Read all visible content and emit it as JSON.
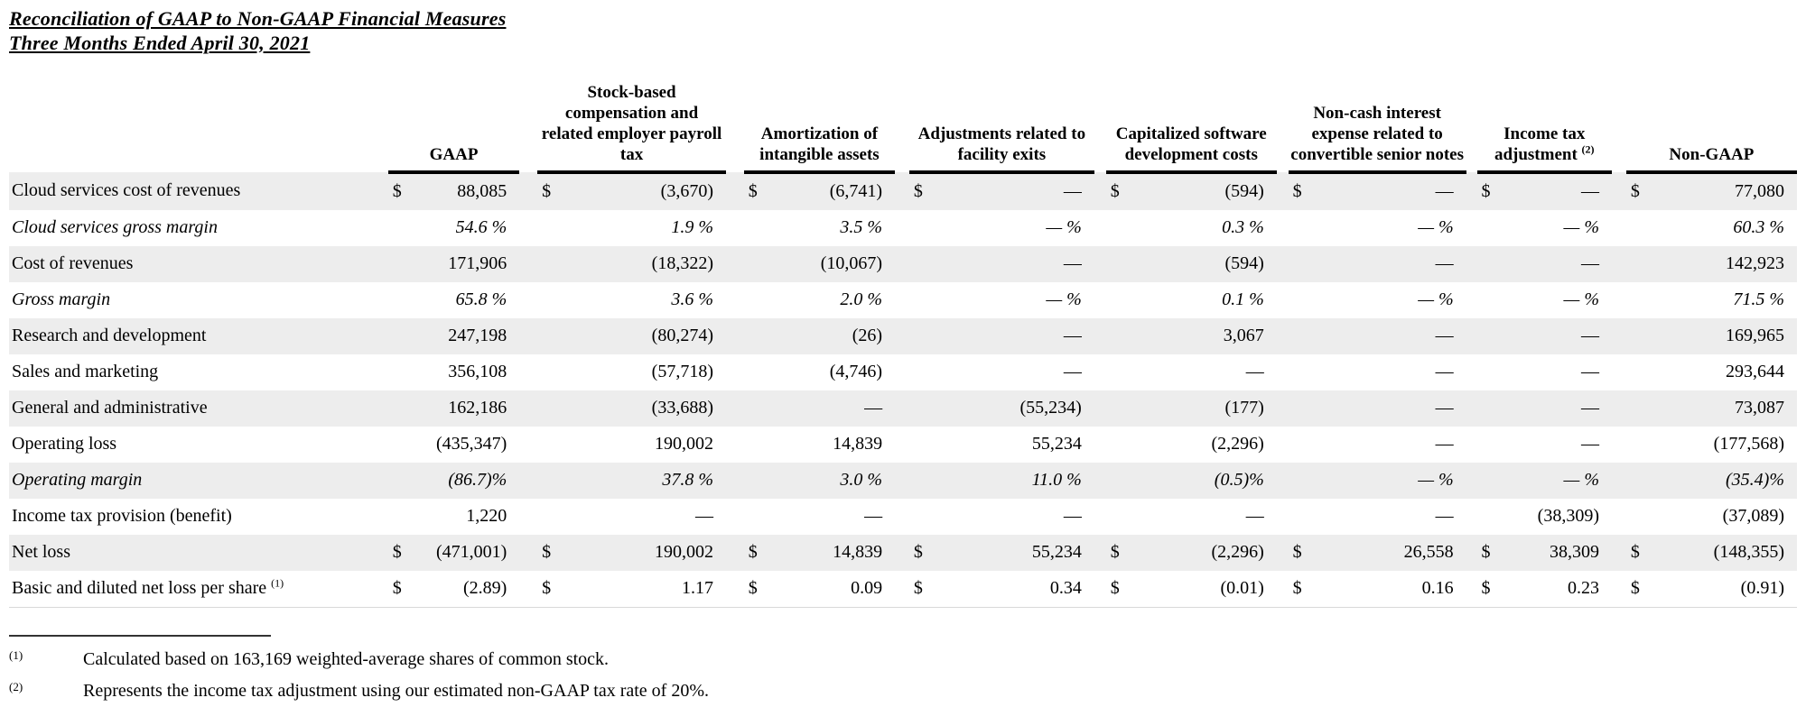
{
  "page": {
    "title": "Reconciliation of GAAP to Non-GAAP Financial Measures",
    "subtitle": "Three Months Ended April 30, 2021"
  },
  "colors": {
    "row_stripe": "#ededed",
    "header_rule": "#000000",
    "table_bottom_rule": "#d9d9d9"
  },
  "table": {
    "dollar_sign": "$",
    "columns": [
      {
        "label": "GAAP",
        "sup": ""
      },
      {
        "label": "Stock-based compensation and related employer payroll tax",
        "sup": ""
      },
      {
        "label": "Amortization of intangible assets",
        "sup": ""
      },
      {
        "label": "Adjustments related to facility exits",
        "sup": ""
      },
      {
        "label": "Capitalized software development costs",
        "sup": ""
      },
      {
        "label": "Non-cash interest expense related to convertible senior notes",
        "sup": ""
      },
      {
        "label": "Income tax adjustment",
        "sup": "(2)"
      },
      {
        "label": "Non-GAAP",
        "sup": ""
      }
    ],
    "rows": [
      {
        "label": "Cloud services cost of revenues",
        "sup": "",
        "italic": false,
        "dollar": true,
        "values": [
          "88,085",
          "(3,670)",
          "(6,741)",
          "—",
          "(594)",
          "—",
          "—",
          "77,080"
        ]
      },
      {
        "label": "Cloud services gross margin",
        "sup": "",
        "italic": true,
        "dollar": false,
        "values": [
          "54.6 %",
          "1.9 %",
          "3.5 %",
          "— %",
          "0.3 %",
          "— %",
          "— %",
          "60.3 %"
        ]
      },
      {
        "label": "Cost of revenues",
        "sup": "",
        "italic": false,
        "dollar": false,
        "values": [
          "171,906",
          "(18,322)",
          "(10,067)",
          "—",
          "(594)",
          "—",
          "—",
          "142,923"
        ]
      },
      {
        "label": "Gross margin",
        "sup": "",
        "italic": true,
        "dollar": false,
        "values": [
          "65.8 %",
          "3.6 %",
          "2.0 %",
          "— %",
          "0.1 %",
          "— %",
          "— %",
          "71.5 %"
        ]
      },
      {
        "label": "Research and development",
        "sup": "",
        "italic": false,
        "dollar": false,
        "values": [
          "247,198",
          "(80,274)",
          "(26)",
          "—",
          "3,067",
          "—",
          "—",
          "169,965"
        ]
      },
      {
        "label": "Sales and marketing",
        "sup": "",
        "italic": false,
        "dollar": false,
        "values": [
          "356,108",
          "(57,718)",
          "(4,746)",
          "—",
          "—",
          "—",
          "—",
          "293,644"
        ]
      },
      {
        "label": "General and administrative",
        "sup": "",
        "italic": false,
        "dollar": false,
        "values": [
          "162,186",
          "(33,688)",
          "—",
          "(55,234)",
          "(177)",
          "—",
          "—",
          "73,087"
        ]
      },
      {
        "label": "Operating loss",
        "sup": "",
        "italic": false,
        "dollar": false,
        "values": [
          "(435,347)",
          "190,002",
          "14,839",
          "55,234",
          "(2,296)",
          "—",
          "—",
          "(177,568)"
        ]
      },
      {
        "label": "Operating margin",
        "sup": "",
        "italic": true,
        "dollar": false,
        "values": [
          "(86.7)%",
          "37.8 %",
          "3.0 %",
          "11.0 %",
          "(0.5)%",
          "— %",
          "— %",
          "(35.4)%"
        ]
      },
      {
        "label": "Income tax provision (benefit)",
        "sup": "",
        "italic": false,
        "dollar": false,
        "values": [
          "1,220",
          "—",
          "—",
          "—",
          "—",
          "—",
          "(38,309)",
          "(37,089)"
        ]
      },
      {
        "label": "Net loss",
        "sup": "",
        "italic": false,
        "dollar": true,
        "values": [
          "(471,001)",
          "190,002",
          "14,839",
          "55,234",
          "(2,296)",
          "26,558",
          "38,309",
          "(148,355)"
        ]
      },
      {
        "label": "Basic and diluted net loss per share",
        "sup": "(1)",
        "italic": false,
        "dollar": true,
        "values": [
          "(2.89)",
          "1.17",
          "0.09",
          "0.34",
          "(0.01)",
          "0.16",
          "0.23",
          "(0.91)"
        ]
      }
    ]
  },
  "footnotes": [
    {
      "marker": "(1)",
      "text": "Calculated based on 163,169 weighted-average shares of common stock."
    },
    {
      "marker": "(2)",
      "text": "Represents the income tax adjustment using our estimated non-GAAP tax rate of 20%."
    }
  ]
}
